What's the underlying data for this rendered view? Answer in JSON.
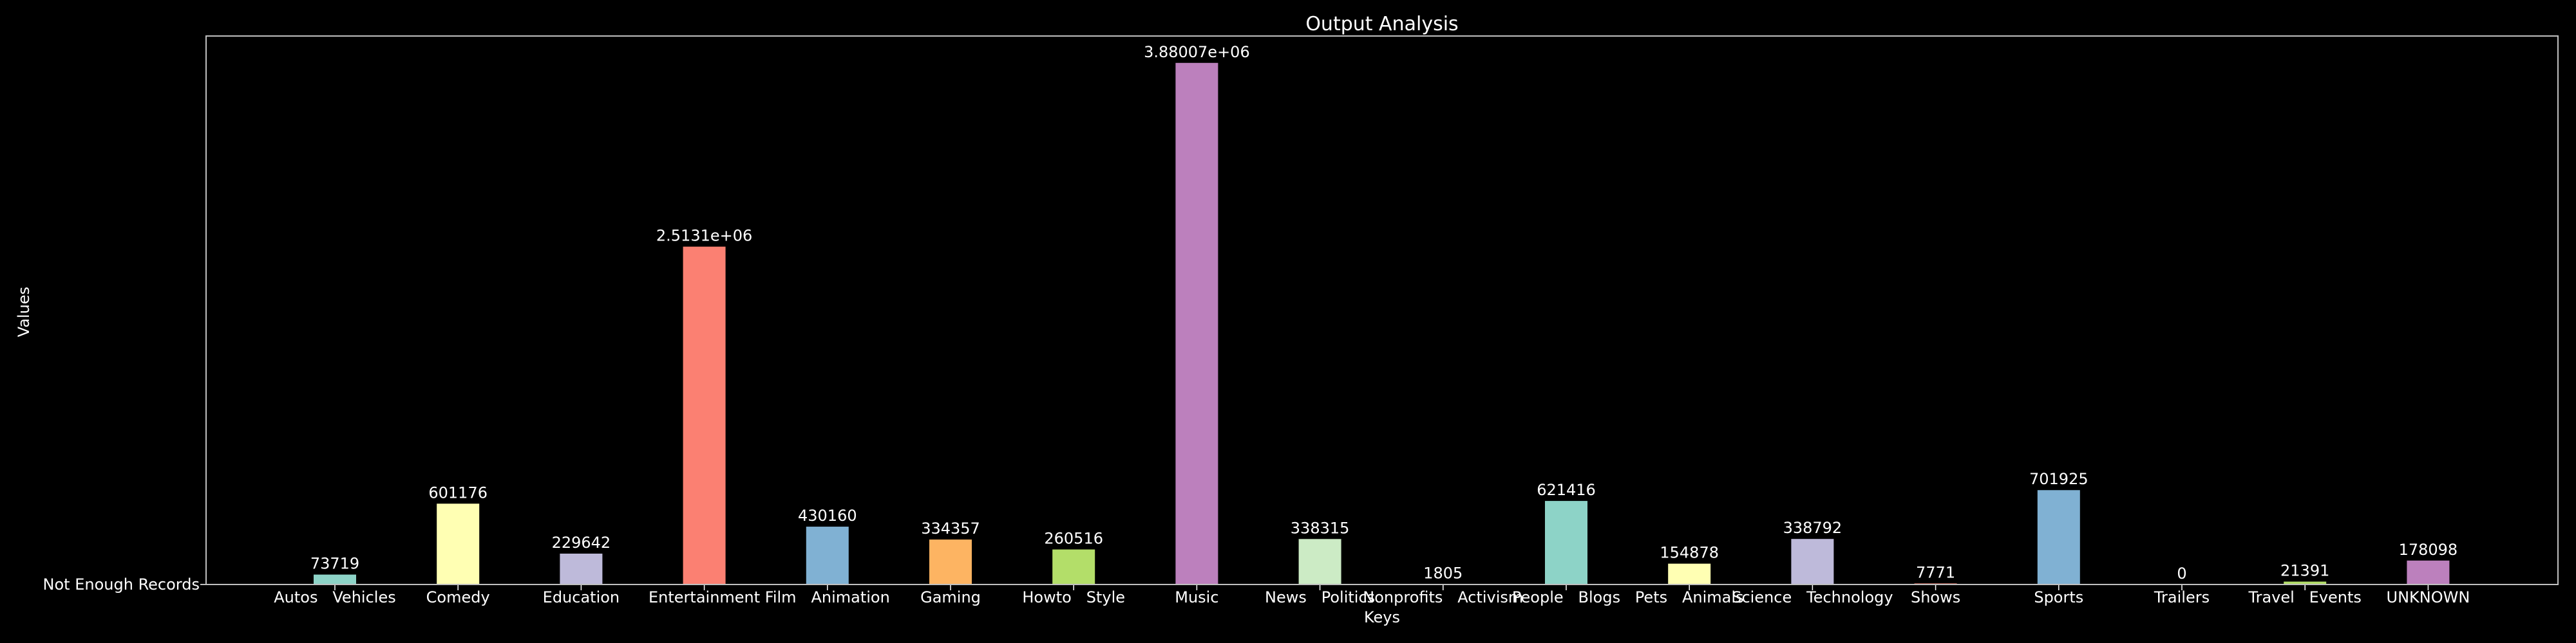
{
  "chart_data": {
    "type": "bar",
    "title": "Output Analysis",
    "xlabel": "Keys",
    "ylabel": "Values",
    "y_tick_label": "Not Enough Records",
    "ylim": [
      0,
      4080000
    ],
    "grid": false,
    "legend": "none",
    "categories": [
      "Autos   Vehicles",
      "Comedy",
      "Education",
      "Entertainment",
      "Film   Animation",
      "Gaming",
      "Howto   Style",
      "Music",
      "News   Politics",
      "Nonprofits   Activism",
      "People   Blogs",
      "Pets   Animals",
      "Science   Technology",
      "Shows",
      "Sports",
      "Trailers",
      "Travel   Events",
      "UNKNOWN"
    ],
    "values": [
      73719,
      601176,
      229642,
      2513100,
      430160,
      334357,
      260516,
      3880070,
      338315,
      1805,
      621416,
      154878,
      338792,
      7771,
      701925,
      0,
      21391,
      178098
    ],
    "value_labels": [
      "73719",
      "601176",
      "229642",
      "2.5131e+06",
      "430160",
      "334357",
      "260516",
      "3.88007e+06",
      "338315",
      "1805",
      "621416",
      "154878",
      "338792",
      "7771",
      "701925",
      "0",
      "21391",
      "178098"
    ],
    "colors": [
      "#8dd3c7",
      "#ffffb3",
      "#bebada",
      "#fb8072",
      "#80b1d3",
      "#fdb462",
      "#b3de69",
      "#bc80bd",
      "#ccebc5",
      "#ffed6f",
      "#8dd3c7",
      "#ffffb3",
      "#bebada",
      "#fb8072",
      "#80b1d3",
      "#fdb462",
      "#b3de69",
      "#bc80bd"
    ]
  }
}
